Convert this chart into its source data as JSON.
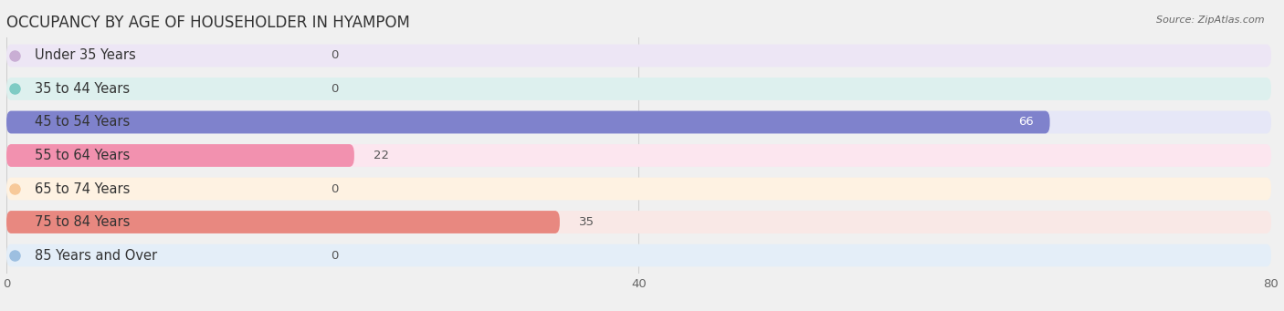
{
  "title": "OCCUPANCY BY AGE OF HOUSEHOLDER IN HYAMPOM",
  "source": "Source: ZipAtlas.com",
  "categories": [
    "Under 35 Years",
    "35 to 44 Years",
    "45 to 54 Years",
    "55 to 64 Years",
    "65 to 74 Years",
    "75 to 84 Years",
    "85 Years and Over"
  ],
  "values": [
    0,
    0,
    66,
    22,
    0,
    35,
    0
  ],
  "bar_colors": [
    "#c9aed4",
    "#7ecbc4",
    "#7f82cc",
    "#f291af",
    "#f7c99a",
    "#e88880",
    "#9dbfe0"
  ],
  "bar_bg_colors": [
    "#ede6f5",
    "#ddf0ee",
    "#e6e7f7",
    "#fce6ef",
    "#fef2e2",
    "#f9e8e6",
    "#e4eef8"
  ],
  "xlim": [
    0,
    80
  ],
  "xticks": [
    0,
    40,
    80
  ],
  "title_fontsize": 12,
  "label_fontsize": 10.5,
  "value_fontsize": 9.5,
  "bg_color": "#f0f0f0",
  "bar_height": 0.68,
  "rounding": 0.3
}
